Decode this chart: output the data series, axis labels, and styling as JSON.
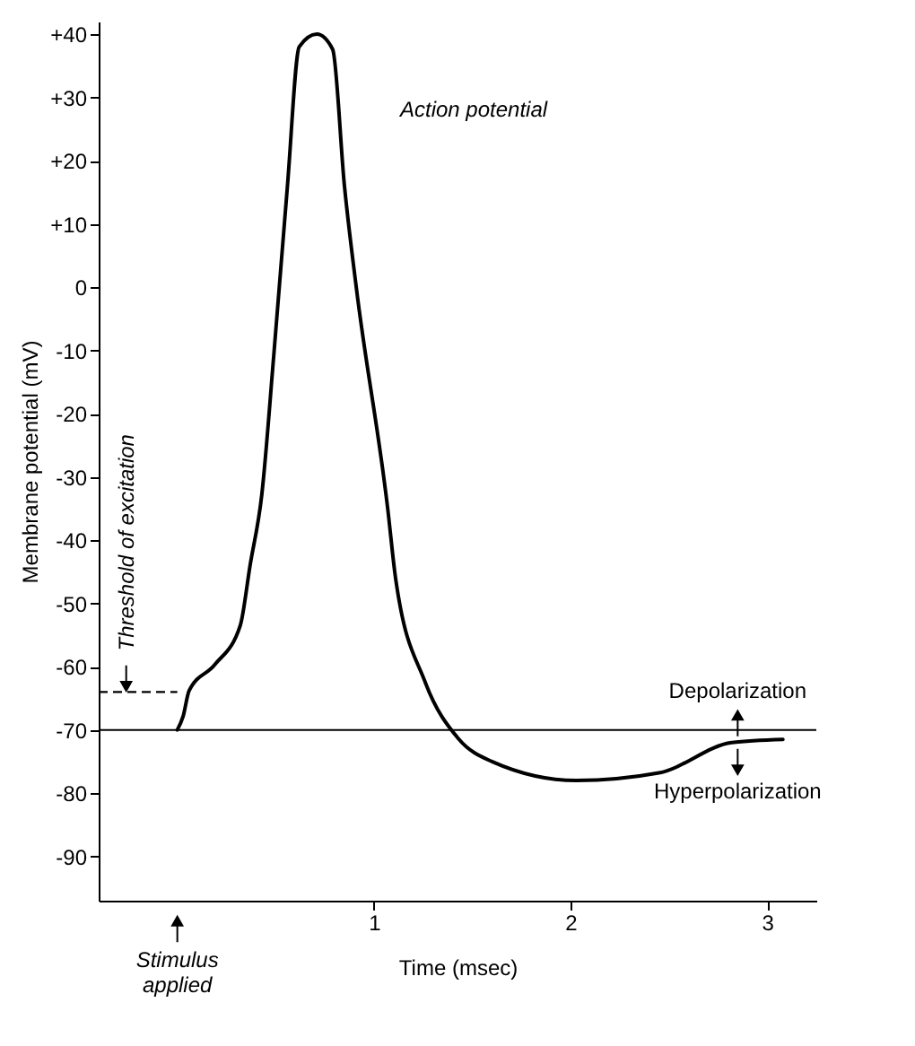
{
  "chart_data": {
    "type": "line",
    "xlabel": "Time (msec)",
    "ylabel": "Membrane potential (mV)",
    "x": [
      0,
      0.03,
      0.06,
      0.19,
      0.32,
      0.37,
      0.43,
      0.49,
      0.56,
      0.62,
      0.71,
      0.79,
      0.85,
      0.91,
      1.07,
      1.11,
      1.26,
      1.43,
      1.6,
      2.03,
      2.45,
      2.82,
      3.08
    ],
    "series": [
      {
        "color": "#000000",
        "values": [
          -70,
          -67.8,
          -63.8,
          -59.7,
          -53.5,
          -44,
          -32.7,
          -11,
          16,
          38,
          40,
          37.6,
          16,
          0,
          -35,
          -46,
          -62.4,
          -71.4,
          -75,
          -78,
          -76.8,
          -72,
          -71.5
        ]
      }
    ],
    "xlim": [
      -0.4,
      3.25
    ],
    "ylim": [
      -97,
      42
    ],
    "xticks": [
      1,
      2,
      3
    ],
    "yticks": [
      {
        "value": 40,
        "label": "+40"
      },
      {
        "value": 30,
        "label": "+30"
      },
      {
        "value": 20,
        "label": "+20"
      },
      {
        "value": 10,
        "label": "+10"
      },
      0,
      -10,
      -20,
      -30,
      -40,
      -50,
      -60,
      -70,
      -80,
      -90
    ],
    "ref_lines": [
      {
        "axis": "y",
        "value": -70,
        "color": "#000000"
      },
      {
        "axis": "y",
        "value": -64,
        "label": "Threshold of excitation",
        "line_style": "dashed",
        "color": "#000000"
      }
    ],
    "annotations": [
      "Action potential",
      "Stimulus applied",
      {
        "text": "Depolarization",
        "x": 2.85,
        "y": -72
      },
      {
        "text": "Hyperpolarization",
        "x": 2.85,
        "y": -72
      }
    ],
    "grid": false,
    "legend": false,
    "marker": "none",
    "line_style": "solid"
  }
}
